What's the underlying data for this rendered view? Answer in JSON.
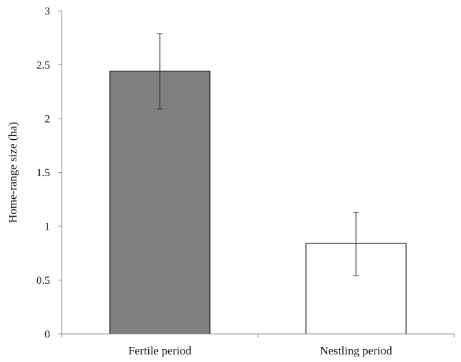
{
  "chart_data": {
    "type": "bar",
    "title": "",
    "xlabel": "",
    "ylabel": "Home-range size (ha)",
    "ylim": [
      0,
      3
    ],
    "yticks": [
      0,
      0.5,
      1,
      1.5,
      2,
      2.5,
      3
    ],
    "ytick_labels": [
      "0",
      "0.5",
      "1",
      "1.5",
      "2",
      "2.5",
      "3"
    ],
    "grid": false,
    "legend": "none",
    "categories": [
      "Fertile period",
      "Nestling period"
    ],
    "values": [
      2.44,
      0.84
    ],
    "error_low": [
      2.09,
      0.54
    ],
    "error_high": [
      2.79,
      1.13
    ],
    "colors": [
      "#808080",
      "#ffffff"
    ]
  }
}
